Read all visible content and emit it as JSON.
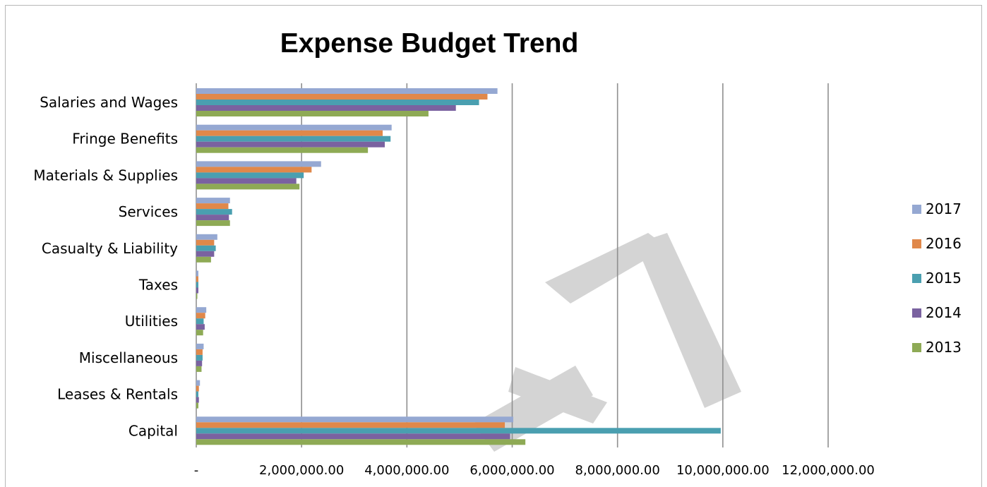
{
  "chart_data": {
    "type": "bar",
    "orientation": "horizontal",
    "title": "Expense Budget Trend",
    "xlabel": "",
    "ylabel": "",
    "xlim": [
      0,
      12000000
    ],
    "x_ticks": [
      0,
      2000000,
      4000000,
      6000000,
      8000000,
      10000000,
      12000000
    ],
    "x_tick_labels": [
      "-",
      "2,000,000.00",
      "4,000,000.00",
      "6,000,000.00",
      "8,000,000.00",
      "10,000,000.00",
      "12,000,000.00"
    ],
    "grid": "vertical-major",
    "legend_position": "right",
    "categories": [
      "Salaries and Wages",
      "Fringe Benefits",
      "Materials & Supplies",
      "Services",
      "Casualty & Liability",
      "Taxes",
      "Utilities",
      "Miscellaneous",
      "Leases & Rentals",
      "Capital"
    ],
    "series": [
      {
        "name": "2017",
        "color": "#95a8d2",
        "values": [
          5720000,
          3710000,
          2370000,
          640000,
          400000,
          40000,
          190000,
          140000,
          70000,
          6020000
        ]
      },
      {
        "name": "2016",
        "color": "#e0884a",
        "values": [
          5530000,
          3540000,
          2190000,
          610000,
          340000,
          40000,
          170000,
          120000,
          50000,
          5860000
        ]
      },
      {
        "name": "2015",
        "color": "#4a9fb0",
        "values": [
          5370000,
          3690000,
          2040000,
          680000,
          370000,
          40000,
          140000,
          120000,
          40000,
          9960000
        ]
      },
      {
        "name": "2014",
        "color": "#7a62a0",
        "values": [
          4930000,
          3580000,
          1900000,
          620000,
          340000,
          40000,
          160000,
          110000,
          50000,
          5960000
        ]
      },
      {
        "name": "2013",
        "color": "#8eaa55",
        "values": [
          4410000,
          3260000,
          1960000,
          640000,
          280000,
          20000,
          130000,
          100000,
          40000,
          6250000
        ]
      }
    ]
  }
}
